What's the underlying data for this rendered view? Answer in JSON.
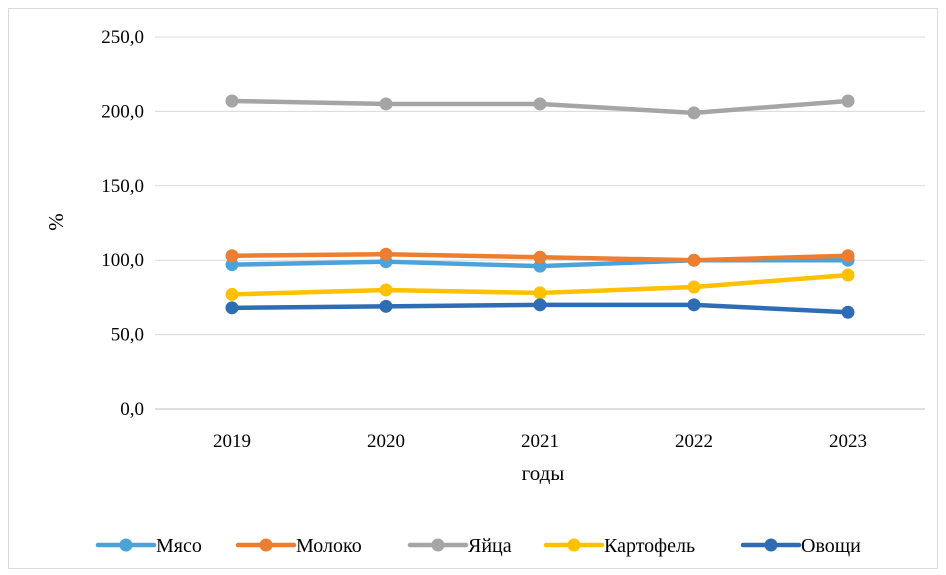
{
  "chart_data": {
    "type": "line",
    "title": "",
    "xlabel": "годы",
    "ylabel": "%",
    "categories": [
      "2019",
      "2020",
      "2021",
      "2022",
      "2023"
    ],
    "ylim": [
      0,
      250
    ],
    "yticks": [
      0,
      50,
      100,
      150,
      200,
      250
    ],
    "ytick_labels": [
      "0,0",
      "50,0",
      "100,0",
      "150,0",
      "200,0",
      "250,0"
    ],
    "grid": true,
    "legend_position": "bottom",
    "series": [
      {
        "name": "Мясо",
        "color": "#4BA3DC",
        "values": [
          97,
          99,
          96,
          100,
          100
        ]
      },
      {
        "name": "Молоко",
        "color": "#ED7D31",
        "values": [
          103,
          104,
          102,
          100,
          103
        ]
      },
      {
        "name": "Яйца",
        "color": "#A5A5A5",
        "values": [
          207,
          205,
          205,
          199,
          207
        ]
      },
      {
        "name": "Картофель",
        "color": "#FFC000",
        "values": [
          77,
          80,
          78,
          82,
          90
        ]
      },
      {
        "name": "Овощи",
        "color": "#2E6DB4",
        "values": [
          68,
          69,
          70,
          70,
          65
        ]
      }
    ]
  }
}
